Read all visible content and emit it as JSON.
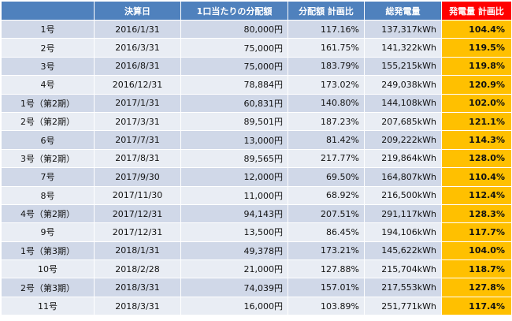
{
  "headers": [
    "",
    "決算日",
    "1口当たりの分配額",
    "分配額 計画比",
    "総発電量",
    "発電量 計画比"
  ],
  "rows": [
    {
      "name": "1号",
      "date": "2016/1/31",
      "amount": "80,000円",
      "ratio": "117.16%",
      "power": "137,317kWh",
      "power_ratio": "104.4%"
    },
    {
      "name": "2号",
      "date": "2016/3/31",
      "amount": "75,000円",
      "ratio": "161.75%",
      "power": "141,322kWh",
      "power_ratio": "119.5%"
    },
    {
      "name": "3号",
      "date": "2016/8/31",
      "amount": "75,000円",
      "ratio": "183.79%",
      "power": "155,215kWh",
      "power_ratio": "119.8%"
    },
    {
      "name": "4号",
      "date": "2016/12/31",
      "amount": "78,884円",
      "ratio": "173.02%",
      "power": "249,038kWh",
      "power_ratio": "120.9%"
    },
    {
      "name": "1号（第2期）",
      "date": "2017/1/31",
      "amount": "60,831円",
      "ratio": "140.80%",
      "power": "144,108kWh",
      "power_ratio": "102.0%"
    },
    {
      "name": "2号（第2期）",
      "date": "2017/3/31",
      "amount": "89,501円",
      "ratio": "187.23%",
      "power": "207,685kWh",
      "power_ratio": "121.1%"
    },
    {
      "name": "6号",
      "date": "2017/7/31",
      "amount": "13,000円",
      "ratio": "81.42%",
      "power": "209,222kWh",
      "power_ratio": "114.3%"
    },
    {
      "name": "3号（第2期）",
      "date": "2017/8/31",
      "amount": "89,565円",
      "ratio": "217.77%",
      "power": "219,864kWh",
      "power_ratio": "128.0%"
    },
    {
      "name": "7号",
      "date": "2017/9/30",
      "amount": "12,000円",
      "ratio": "69.50%",
      "power": "164,807kWh",
      "power_ratio": "110.4%"
    },
    {
      "name": "8号",
      "date": "2017/11/30",
      "amount": "11,000円",
      "ratio": "68.92%",
      "power": "216,500kWh",
      "power_ratio": "112.4%"
    },
    {
      "name": "4号（第2期）",
      "date": "2017/12/31",
      "amount": "94,143円",
      "ratio": "207.51%",
      "power": "291,117kWh",
      "power_ratio": "128.3%"
    },
    {
      "name": "9号",
      "date": "2017/12/31",
      "amount": "13,500円",
      "ratio": "86.45%",
      "power": "194,106kWh",
      "power_ratio": "117.7%"
    },
    {
      "name": "1号（第3期）",
      "date": "2018/1/31",
      "amount": "49,378円",
      "ratio": "173.21%",
      "power": "145,622kWh",
      "power_ratio": "104.0%"
    },
    {
      "name": "10号",
      "date": "2018/2/28",
      "amount": "21,000円",
      "ratio": "127.88%",
      "power": "215,704kWh",
      "power_ratio": "118.7%"
    },
    {
      "name": "2号（第3期）",
      "date": "2018/3/31",
      "amount": "74,039円",
      "ratio": "157.01%",
      "power": "217,553kWh",
      "power_ratio": "127.8%"
    },
    {
      "name": "11号",
      "date": "2018/3/31",
      "amount": "16,000円",
      "ratio": "103.89%",
      "power": "251,771kWh",
      "power_ratio": "117.4%"
    }
  ],
  "colors": {
    "header": "#4f81bd",
    "highlight_header": "#ff0000",
    "row_odd": "#d0d8e8",
    "row_even": "#e9edf4",
    "highlight_cell": "#ffc000"
  }
}
